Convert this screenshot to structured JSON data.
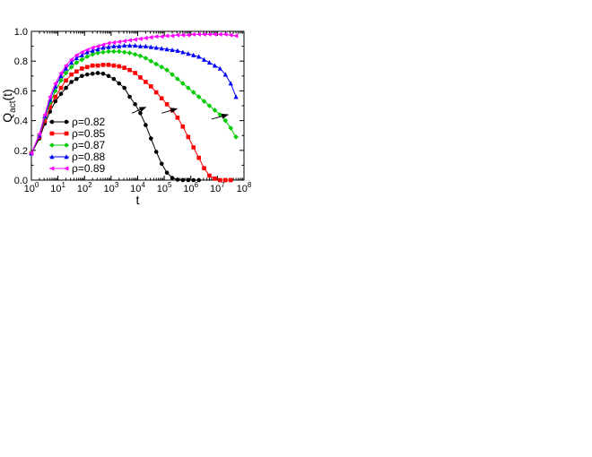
{
  "chart_data": {
    "type": "scatter",
    "xscale": "log",
    "xlim": [
      1,
      100000000
    ],
    "ylim": [
      0,
      1
    ],
    "x_ticks": [
      {
        "exp": "0"
      },
      {
        "exp": "1"
      },
      {
        "exp": "2"
      },
      {
        "exp": "3"
      },
      {
        "exp": "4"
      },
      {
        "exp": "5"
      },
      {
        "exp": "6"
      },
      {
        "exp": "7"
      },
      {
        "exp": "8"
      }
    ],
    "x_tick_base": "10",
    "y_ticks": [
      "0.0",
      "0.2",
      "0.4",
      "0.6",
      "0.8",
      "1.0"
    ],
    "xlabel": "t",
    "ylabel": {
      "main": "Q",
      "sub": "act",
      "tail": "(t)"
    },
    "legend_position": "lower-left",
    "grid": false,
    "series": [
      {
        "name": "ρ=0.82",
        "color": "#000000",
        "marker": "circle",
        "x": [
          1,
          2,
          3.2,
          5,
          8,
          13,
          20,
          32,
          50,
          80,
          126,
          200,
          316,
          500,
          800,
          1260,
          2000,
          3160,
          5000,
          8000,
          12600,
          20000,
          31600,
          50000,
          80000,
          126000,
          200000,
          316000,
          500000,
          800000,
          1260000,
          2000000
        ],
        "y": [
          0.18,
          0.28,
          0.38,
          0.46,
          0.53,
          0.58,
          0.62,
          0.66,
          0.68,
          0.7,
          0.71,
          0.715,
          0.72,
          0.715,
          0.7,
          0.68,
          0.65,
          0.62,
          0.56,
          0.51,
          0.45,
          0.37,
          0.28,
          0.19,
          0.11,
          0.05,
          0.015,
          0.003,
          0.0,
          0.0,
          0.0,
          0.0
        ]
      },
      {
        "name": "ρ=0.85",
        "color": "#ff0000",
        "marker": "square",
        "x": [
          1,
          2,
          3.2,
          5,
          8,
          13,
          20,
          32,
          50,
          80,
          126,
          200,
          316,
          500,
          800,
          1260,
          2000,
          3160,
          5000,
          8000,
          12600,
          20000,
          31600,
          50000,
          80000,
          126000,
          200000,
          316000,
          500000,
          800000,
          1260000,
          2000000,
          3160000,
          5000000,
          8000000,
          12600000,
          20000000,
          31600000
        ],
        "y": [
          0.18,
          0.29,
          0.4,
          0.49,
          0.56,
          0.62,
          0.67,
          0.71,
          0.73,
          0.75,
          0.76,
          0.77,
          0.77,
          0.775,
          0.775,
          0.77,
          0.765,
          0.755,
          0.74,
          0.72,
          0.69,
          0.66,
          0.63,
          0.59,
          0.55,
          0.51,
          0.47,
          0.42,
          0.36,
          0.29,
          0.22,
          0.15,
          0.08,
          0.03,
          0.01,
          0.0,
          0.0,
          0.0
        ]
      },
      {
        "name": "ρ=0.87",
        "color": "#00cc00",
        "marker": "diamond",
        "x": [
          1,
          2,
          3.2,
          5,
          8,
          13,
          20,
          32,
          50,
          80,
          126,
          200,
          316,
          500,
          800,
          1260,
          2000,
          3160,
          5000,
          8000,
          12600,
          20000,
          31600,
          50000,
          80000,
          126000,
          200000,
          316000,
          500000,
          800000,
          1260000,
          2000000,
          3160000,
          5000000,
          8000000,
          12600000,
          20000000,
          31600000,
          50000000
        ],
        "y": [
          0.18,
          0.3,
          0.42,
          0.52,
          0.6,
          0.67,
          0.72,
          0.76,
          0.79,
          0.81,
          0.83,
          0.845,
          0.855,
          0.86,
          0.865,
          0.865,
          0.865,
          0.86,
          0.855,
          0.845,
          0.835,
          0.82,
          0.8,
          0.78,
          0.76,
          0.74,
          0.71,
          0.68,
          0.65,
          0.62,
          0.59,
          0.56,
          0.53,
          0.5,
          0.47,
          0.44,
          0.4,
          0.35,
          0.29
        ]
      },
      {
        "name": "ρ=0.88",
        "color": "#0000ff",
        "marker": "triangle-up",
        "x": [
          1,
          2,
          3.2,
          5,
          8,
          13,
          20,
          32,
          50,
          80,
          126,
          200,
          316,
          500,
          800,
          1260,
          2000,
          3160,
          5000,
          8000,
          12600,
          20000,
          31600,
          50000,
          80000,
          126000,
          200000,
          316000,
          500000,
          800000,
          1260000,
          2000000,
          3160000,
          5000000,
          8000000,
          12600000,
          20000000,
          31600000,
          50000000
        ],
        "y": [
          0.18,
          0.3,
          0.43,
          0.54,
          0.63,
          0.7,
          0.75,
          0.79,
          0.82,
          0.84,
          0.86,
          0.87,
          0.88,
          0.89,
          0.895,
          0.9,
          0.9,
          0.905,
          0.905,
          0.905,
          0.9,
          0.9,
          0.895,
          0.89,
          0.885,
          0.88,
          0.875,
          0.87,
          0.86,
          0.85,
          0.84,
          0.83,
          0.81,
          0.79,
          0.77,
          0.75,
          0.71,
          0.65,
          0.56
        ]
      },
      {
        "name": "ρ=0.89",
        "color": "#ff00ff",
        "marker": "triangle-left",
        "x": [
          1,
          2,
          3.2,
          5,
          8,
          13,
          20,
          32,
          50,
          80,
          126,
          200,
          316,
          500,
          800,
          1260,
          2000,
          3160,
          5000,
          8000,
          12600,
          20000,
          31600,
          50000,
          80000,
          126000,
          200000,
          316000,
          500000,
          800000,
          1260000,
          2000000,
          3160000,
          5000000,
          8000000,
          12600000,
          20000000,
          31600000,
          50000000
        ],
        "y": [
          0.18,
          0.31,
          0.44,
          0.56,
          0.65,
          0.72,
          0.77,
          0.81,
          0.84,
          0.86,
          0.875,
          0.89,
          0.9,
          0.91,
          0.92,
          0.925,
          0.93,
          0.935,
          0.94,
          0.945,
          0.95,
          0.955,
          0.96,
          0.965,
          0.965,
          0.97,
          0.97,
          0.975,
          0.975,
          0.975,
          0.98,
          0.98,
          0.98,
          0.98,
          0.98,
          0.98,
          0.98,
          0.975,
          0.97
        ]
      }
    ],
    "annotations": [
      {
        "type": "arrow",
        "from": {
          "x": 6000,
          "y": 0.45
        },
        "to": {
          "x": 20000,
          "y": 0.49
        }
      },
      {
        "type": "arrow",
        "from": {
          "x": 80000,
          "y": 0.45
        },
        "to": {
          "x": 300000,
          "y": 0.48
        }
      },
      {
        "type": "arrow",
        "from": {
          "x": 6000000,
          "y": 0.41
        },
        "to": {
          "x": 25000000,
          "y": 0.44
        }
      }
    ]
  }
}
